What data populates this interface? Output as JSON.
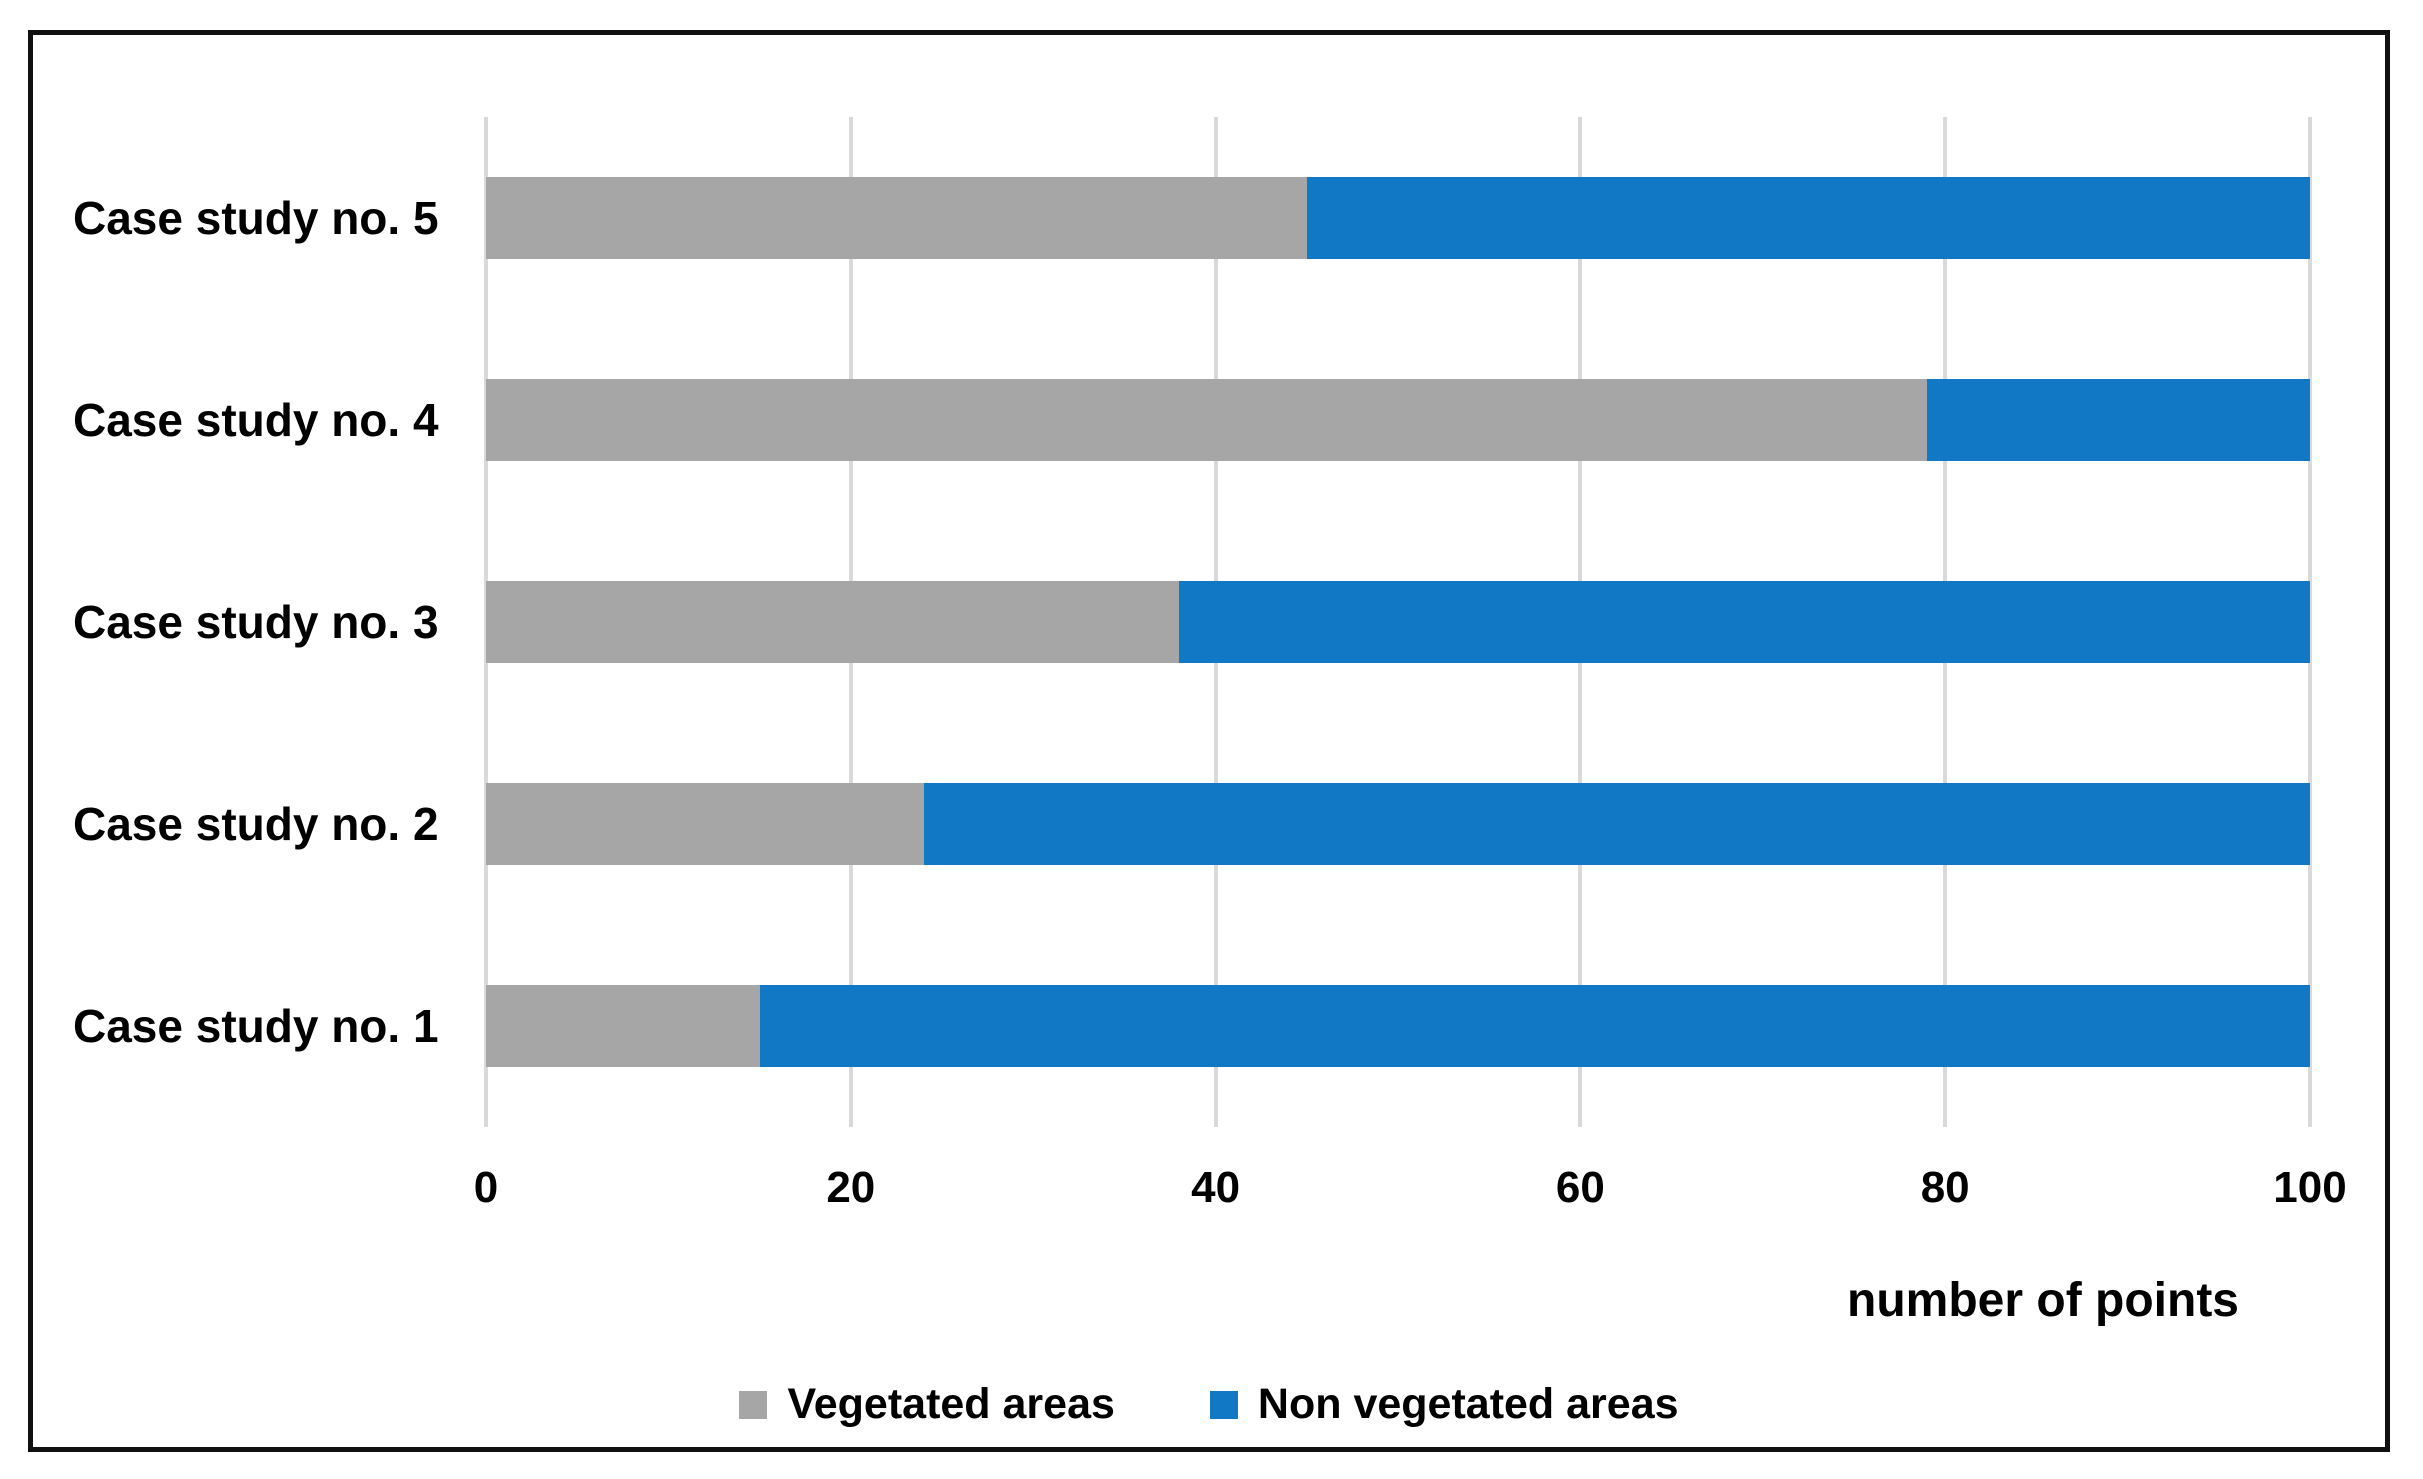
{
  "chart_data": {
    "type": "bar",
    "orientation": "horizontal",
    "stacked": true,
    "title": "",
    "categories": [
      "Case study no. 1",
      "Case study no. 2",
      "Case study no. 3",
      "Case study no. 4",
      "Case study no. 5"
    ],
    "row_order_top_to_bottom": [
      "Case study no. 5",
      "Case study no. 4",
      "Case study no. 3",
      "Case study no. 2",
      "Case study no. 1"
    ],
    "series": [
      {
        "name": "Vegetated areas",
        "color": "#a6a6a6",
        "values": [
          15,
          24,
          38,
          79,
          45
        ]
      },
      {
        "name": "Non vegetated areas",
        "color": "#1078c5",
        "values": [
          85,
          76,
          62,
          21,
          55
        ]
      }
    ],
    "xlabel": "number of points",
    "ylabel": "",
    "xlim": [
      0,
      100
    ],
    "xticks": [
      0,
      20,
      40,
      60,
      80,
      100
    ],
    "grid": true,
    "legend_position": "bottom-center"
  },
  "legend": {
    "items": [
      {
        "label": "Vegetated areas",
        "color": "#a6a6a6"
      },
      {
        "label": "Non vegetated areas",
        "color": "#1078c5"
      }
    ]
  },
  "colors": {
    "grid": "#d9d9d9",
    "axis_line": "#d9d9d9",
    "frame_border": "#101010",
    "text": "#000000",
    "background": "#ffffff"
  }
}
